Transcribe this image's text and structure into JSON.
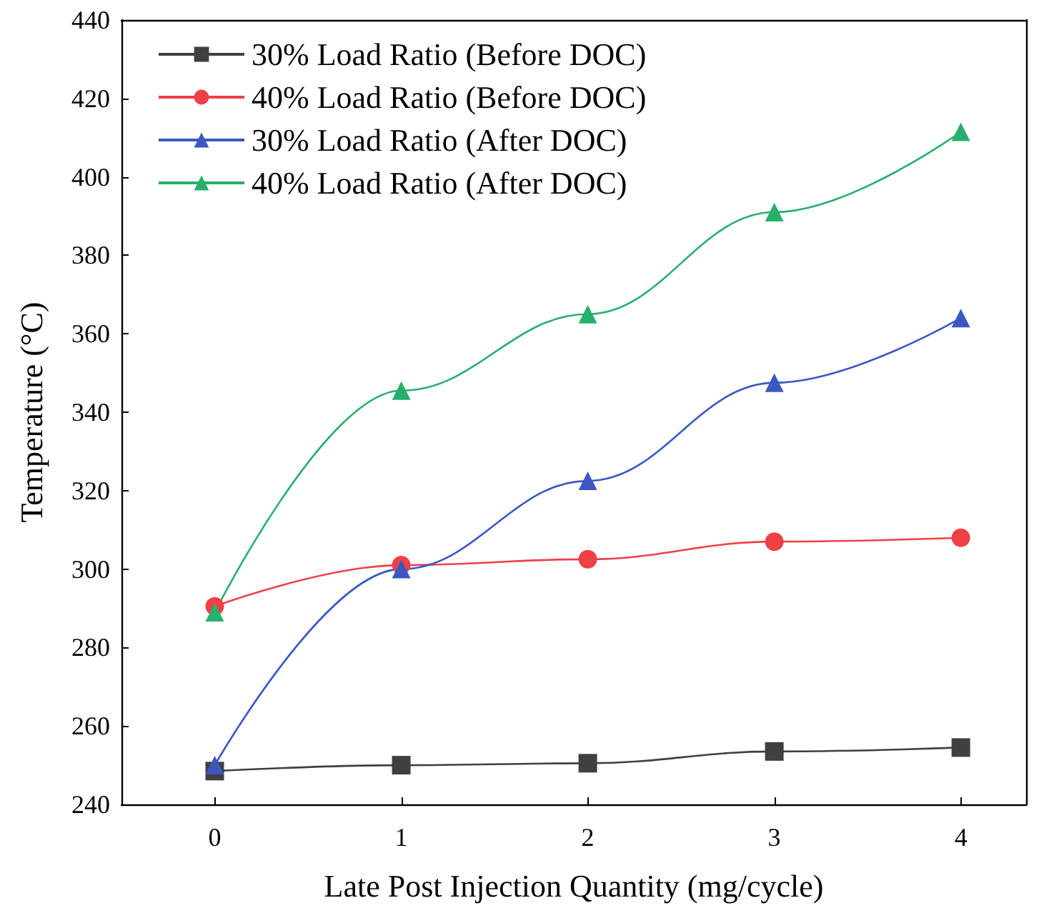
{
  "chart_data": {
    "type": "line",
    "xlabel": "Late Post Injection Quantity (mg/cycle)",
    "ylabel": "Temperature (°C)",
    "x": [
      0,
      1,
      2,
      3,
      4
    ],
    "xlim": [
      -0.5,
      4.35
    ],
    "xticks": [
      0,
      1,
      2,
      3,
      4
    ],
    "ylim": [
      240,
      440
    ],
    "yticks": [
      240,
      260,
      280,
      300,
      320,
      340,
      360,
      380,
      400,
      420,
      440
    ],
    "grid": false,
    "legend": "top left",
    "series": [
      {
        "name": "30% Load Ratio (Before DOC)",
        "color": "#404040",
        "marker": "square",
        "values": [
          248.5,
          250,
          250.5,
          253.5,
          254.5
        ]
      },
      {
        "name": "40% Load Ratio (Before DOC)",
        "color": "#ef4046",
        "marker": "circle",
        "values": [
          290.5,
          301,
          302.5,
          307,
          308
        ]
      },
      {
        "name": "30% Load Ratio (After DOC)",
        "color": "#3a58c0",
        "marker": "triangle",
        "values": [
          250,
          300,
          322.5,
          347.5,
          364
        ]
      },
      {
        "name": "40% Load Ratio (After DOC)",
        "color": "#27b06c",
        "marker": "triangle",
        "values": [
          289,
          345.5,
          365,
          391,
          411.5
        ]
      }
    ]
  }
}
